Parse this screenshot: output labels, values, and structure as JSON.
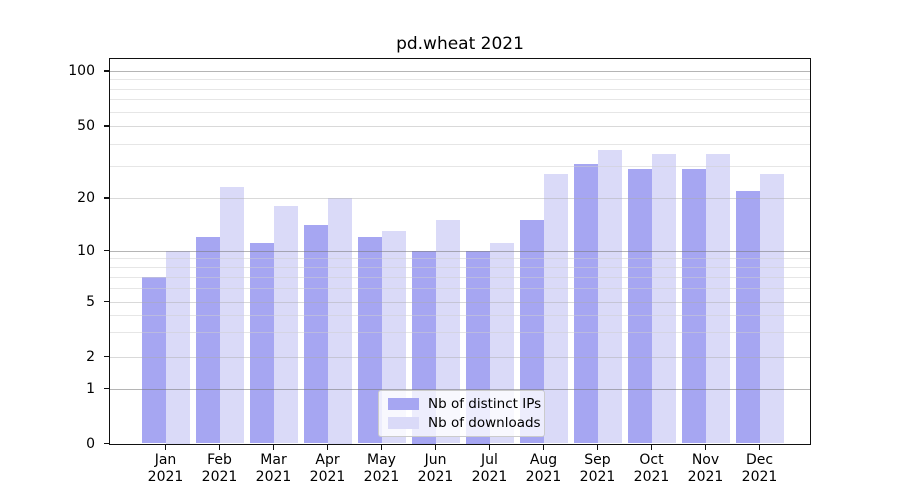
{
  "title": "pd.wheat 2021",
  "chart_data": {
    "type": "bar",
    "title": "pd.wheat 2021",
    "categories": [
      "Jan",
      "Feb",
      "Mar",
      "Apr",
      "May",
      "Jun",
      "Jul",
      "Aug",
      "Sep",
      "Oct",
      "Nov",
      "Dec"
    ],
    "category_year": "2021",
    "series": [
      {
        "name": "Nb of distinct IPs",
        "color": "#a6a6f2",
        "values": [
          7,
          12,
          11,
          14,
          12,
          10,
          10,
          15,
          31,
          29,
          29,
          22
        ]
      },
      {
        "name": "Nb of downloads",
        "color": "#dadaf8",
        "values": [
          10,
          23,
          18,
          20,
          13,
          15,
          11,
          27,
          37,
          35,
          35,
          27
        ]
      }
    ],
    "xlabel": "",
    "ylabel": "",
    "yscale": "symlog",
    "yticks": [
      0,
      1,
      2,
      5,
      10,
      20,
      50,
      100
    ],
    "ylim": [
      0,
      117
    ],
    "grid": true,
    "legend_position": "lower center"
  }
}
